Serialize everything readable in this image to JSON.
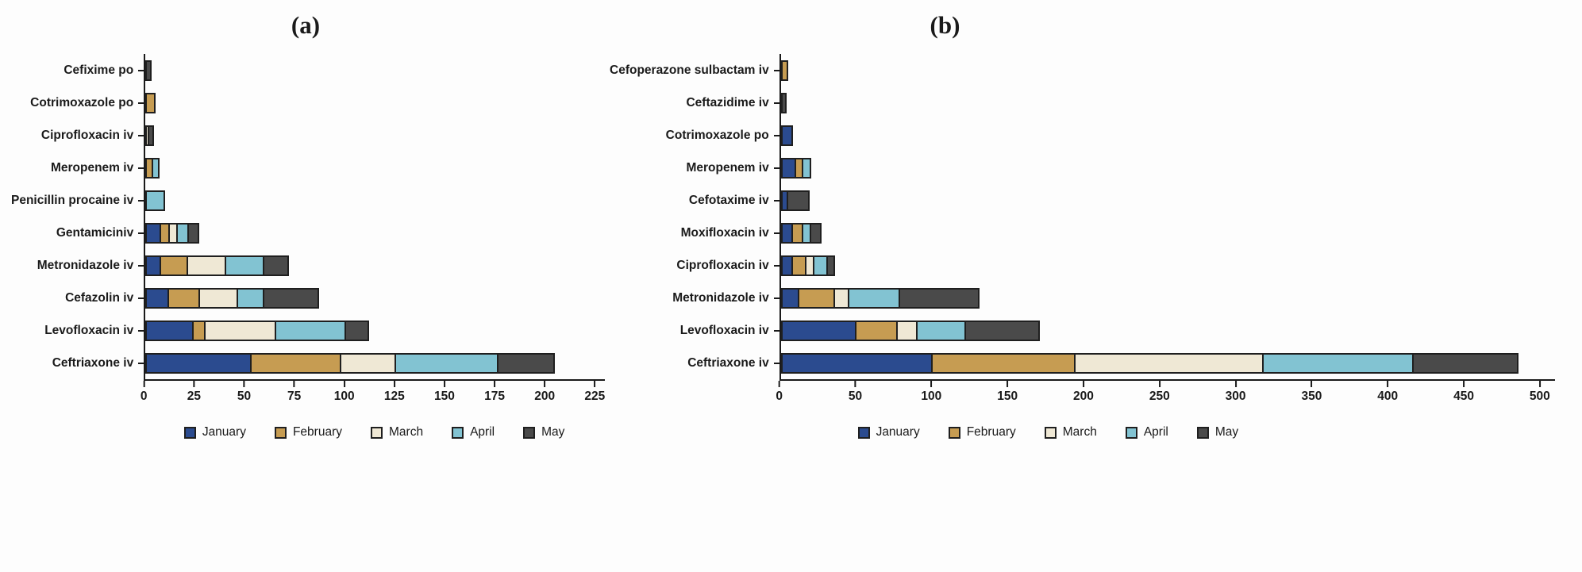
{
  "page": {
    "background": "#fdfdfd"
  },
  "colors": {
    "January": "#2b4b8f",
    "February": "#c69c52",
    "March": "#efe8d5",
    "April": "#82c3d2",
    "May": "#4a4a4a",
    "segment_border": "#1f1f1f",
    "axis": "#1a1a1a"
  },
  "legend": [
    "January",
    "February",
    "March",
    "April",
    "May"
  ],
  "chart_data": [
    {
      "type": "bar",
      "orientation": "horizontal",
      "stacked": true,
      "title": "(a)",
      "categories": [
        "Cefixime po",
        "Cotrimoxazole po",
        "Ciprofloxacin iv",
        "Meropenem iv",
        "Penicillin procaine iv",
        "Gentamiciniv",
        "Metronidazole iv",
        "Cefazolin iv",
        "Levofloxacin iv",
        "Ceftriaxone iv"
      ],
      "series": [
        {
          "name": "January",
          "values": [
            0,
            0,
            0,
            0,
            0,
            8,
            8,
            12,
            24,
            53
          ]
        },
        {
          "name": "February",
          "values": [
            0,
            5,
            0,
            4,
            0,
            5,
            14,
            16,
            7,
            46
          ]
        },
        {
          "name": "March",
          "values": [
            0,
            0,
            2,
            0,
            0,
            5,
            20,
            20,
            36,
            28
          ]
        },
        {
          "name": "April",
          "values": [
            0,
            0,
            0,
            4,
            10,
            6,
            20,
            14,
            36,
            52
          ]
        },
        {
          "name": "May",
          "values": [
            3,
            0,
            3,
            0,
            0,
            6,
            13,
            28,
            12,
            29
          ]
        }
      ],
      "xlim": [
        0,
        230
      ],
      "xticks": [
        0,
        25,
        50,
        75,
        100,
        125,
        150,
        175,
        200,
        225
      ],
      "legend_position": "bottom",
      "grid": false
    },
    {
      "type": "bar",
      "orientation": "horizontal",
      "stacked": true,
      "title": "(b)",
      "categories": [
        "Cefoperazone sulbactam iv",
        "Ceftazidime iv",
        "Cotrimoxazole po",
        "Meropenem iv",
        "Cefotaxime iv",
        "Moxifloxacin iv",
        "Ciprofloxacin iv",
        "Metronidazole iv",
        "Levofloxacin iv",
        "Ceftriaxone iv"
      ],
      "series": [
        {
          "name": "January",
          "values": [
            0,
            0,
            8,
            10,
            5,
            8,
            8,
            12,
            50,
            100
          ]
        },
        {
          "name": "February",
          "values": [
            5,
            0,
            0,
            6,
            0,
            8,
            10,
            25,
            28,
            95
          ]
        },
        {
          "name": "March",
          "values": [
            0,
            0,
            0,
            0,
            0,
            0,
            6,
            10,
            14,
            125
          ]
        },
        {
          "name": "April",
          "values": [
            0,
            0,
            0,
            6,
            0,
            6,
            10,
            35,
            33,
            100
          ]
        },
        {
          "name": "May",
          "values": [
            0,
            4,
            0,
            0,
            15,
            8,
            6,
            53,
            50,
            70
          ]
        }
      ],
      "xlim": [
        0,
        510
      ],
      "xticks": [
        0,
        50,
        100,
        150,
        200,
        250,
        300,
        350,
        400,
        450,
        500
      ],
      "legend_position": "bottom",
      "grid": false
    }
  ]
}
